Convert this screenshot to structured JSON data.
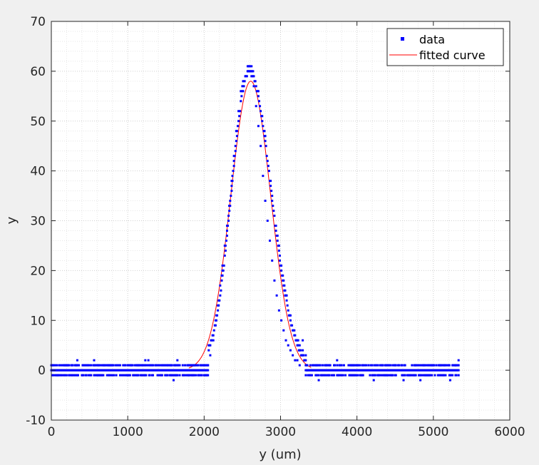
{
  "chart_data": {
    "type": "scatter",
    "title": "",
    "xlabel": "y (um)",
    "ylabel": "y",
    "xlim": [
      0,
      6000
    ],
    "ylim": [
      -10,
      70
    ],
    "xticks": [
      0,
      1000,
      2000,
      3000,
      4000,
      5000,
      6000
    ],
    "yticks": [
      -10,
      0,
      10,
      20,
      30,
      40,
      50,
      60,
      70
    ],
    "grid": "on (major and minor, dotted)",
    "legend_position": "top-right",
    "legend": [
      "data",
      "fitted curve"
    ],
    "series": [
      {
        "name": "data",
        "kind": "scatter",
        "color": "#0000ff",
        "x_range": [
          0,
          5330
        ],
        "peak": {
          "x": 2590,
          "y": 61
        },
        "baseline_values": [
          -1,
          0,
          1,
          2
        ],
        "points": [
          [
            1600,
            -2
          ],
          [
            1650,
            2
          ],
          [
            340,
            2
          ],
          [
            560,
            2
          ],
          [
            1230,
            2
          ],
          [
            1270,
            2
          ],
          [
            2000,
            1
          ],
          [
            2050,
            1
          ],
          [
            2080,
            3
          ],
          [
            2120,
            6
          ],
          [
            2150,
            9
          ],
          [
            2180,
            13
          ],
          [
            2210,
            17
          ],
          [
            2240,
            21
          ],
          [
            2270,
            25
          ],
          [
            2300,
            29
          ],
          [
            2330,
            33
          ],
          [
            2360,
            38
          ],
          [
            2390,
            43
          ],
          [
            2420,
            48
          ],
          [
            2450,
            52
          ],
          [
            2480,
            56
          ],
          [
            2510,
            58
          ],
          [
            2540,
            59
          ],
          [
            2570,
            60
          ],
          [
            2590,
            61
          ],
          [
            2620,
            59
          ],
          [
            2650,
            57
          ],
          [
            2680,
            53
          ],
          [
            2710,
            49
          ],
          [
            2740,
            45
          ],
          [
            2770,
            39
          ],
          [
            2800,
            34
          ],
          [
            2830,
            30
          ],
          [
            2860,
            26
          ],
          [
            2890,
            22
          ],
          [
            2920,
            18
          ],
          [
            2950,
            15
          ],
          [
            2980,
            12
          ],
          [
            3010,
            10
          ],
          [
            3040,
            8
          ],
          [
            3070,
            6
          ],
          [
            3100,
            5
          ],
          [
            3130,
            4
          ],
          [
            3160,
            3
          ],
          [
            3190,
            2
          ],
          [
            3220,
            2
          ],
          [
            3250,
            1
          ],
          [
            3290,
            6
          ],
          [
            3350,
            0
          ],
          [
            3500,
            -2
          ],
          [
            3740,
            2
          ],
          [
            4220,
            -2
          ],
          [
            4610,
            -2
          ],
          [
            4750,
            1
          ],
          [
            4830,
            -2
          ],
          [
            5220,
            -2
          ],
          [
            5290,
            1
          ],
          [
            5330,
            2
          ]
        ]
      },
      {
        "name": "fitted curve",
        "kind": "line",
        "color": "#ff0000",
        "model": "gaussian",
        "amplitude": 58,
        "center": 2610,
        "sigma": 260,
        "x_range": [
          1800,
          3400
        ]
      }
    ]
  }
}
